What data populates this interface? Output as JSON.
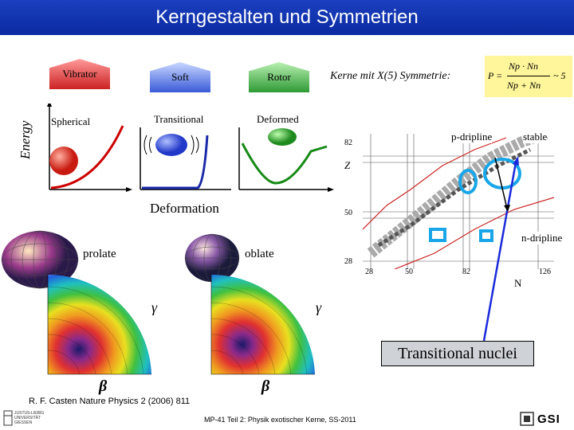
{
  "title": "Kerngestalten und Symmetrien",
  "energy_label": "Energy",
  "regimes": {
    "vibrator": "Vibrator",
    "soft": "Soft",
    "rotor": "Rotor"
  },
  "shapes": {
    "spherical": "Spherical",
    "transitional": "Transitional",
    "deformed": "Deformed"
  },
  "deformation_label": "Deformation",
  "x5": {
    "text": "Kerne mit X(5) Symmetrie:",
    "formula_p": "P =",
    "num": "Np · Nn",
    "den": "Np + Nn",
    "approx": "~ 5"
  },
  "chart": {
    "p_dripline": "p-dripline",
    "stable": "stable",
    "n_dripline": "n-dripline",
    "z_label": "Z",
    "n_label": "N",
    "y_ticks": [
      "82",
      "50",
      "28"
    ],
    "x_ticks": [
      "28",
      "50",
      "82",
      "126"
    ]
  },
  "prolate": "prolate",
  "oblate": "oblate",
  "gamma": "γ",
  "beta": "β",
  "transitional_nuclei": "Transitional nuclei",
  "reference": "R. F. Casten Nature Physics 2 (2006) 811",
  "footer": "MP-41 Teil 2: Physik exotischer Kerne, SS-2011",
  "uni_logo": "JUSTUS-LIEBIG UNIVERSITÄT GIESSEN",
  "gsi_logo": "GSI",
  "colors": {
    "title_bg": "#1b3fbf",
    "pent_vibrator": "#d62c2c",
    "pent_soft": "#3a5bd8",
    "pent_rotor": "#2e9a34"
  }
}
